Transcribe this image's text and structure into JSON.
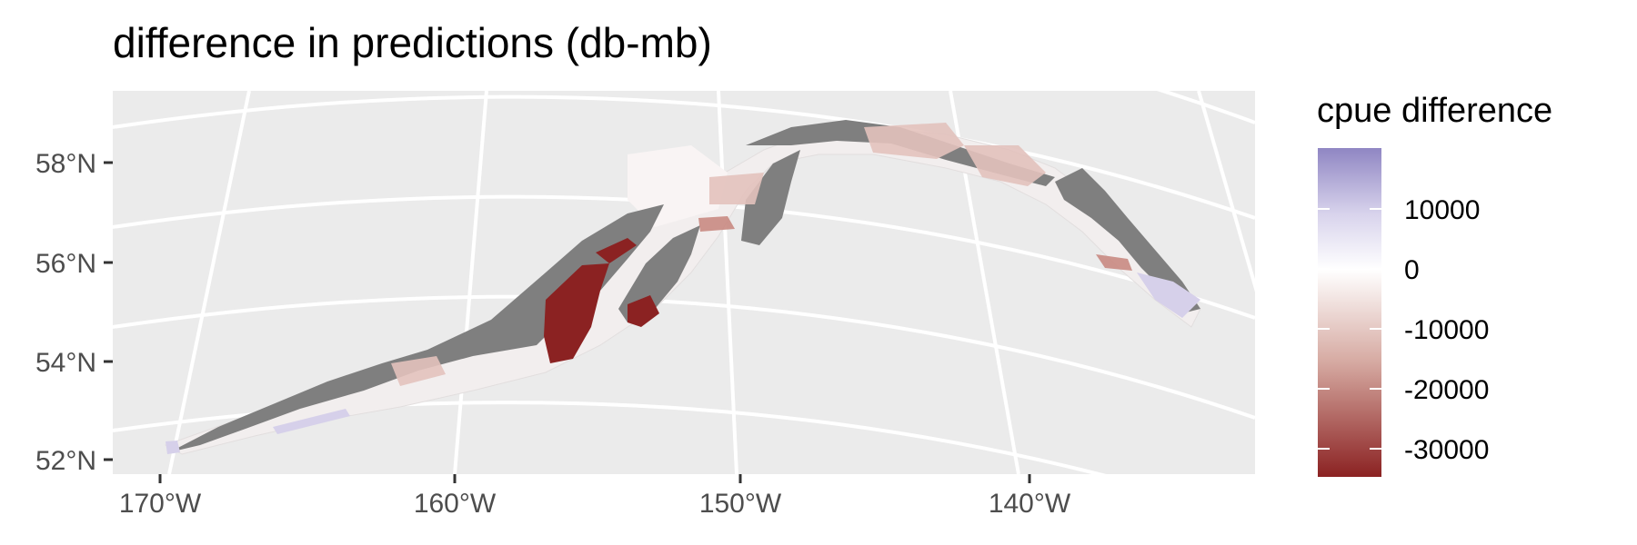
{
  "title": "difference in predictions (db-mb)",
  "map": {
    "type": "map",
    "region": "Gulf of Alaska",
    "background_color": "#ebebeb",
    "graticule_color": "#ffffff",
    "land_color": "#7f7f7f",
    "grid": true,
    "lat_ticks": [
      "58°N",
      "56°N",
      "54°N",
      "52°N"
    ],
    "lon_ticks": [
      "170°W",
      "160°W",
      "150°W",
      "140°W"
    ]
  },
  "legend": {
    "title": "cpue difference",
    "position": "right",
    "labels": [
      "10000",
      "0",
      "-10000",
      "-20000",
      "-30000"
    ],
    "colors": {
      "high": "#8f86c3",
      "mid": "#ffffff",
      "low": "#8b2222"
    }
  }
}
